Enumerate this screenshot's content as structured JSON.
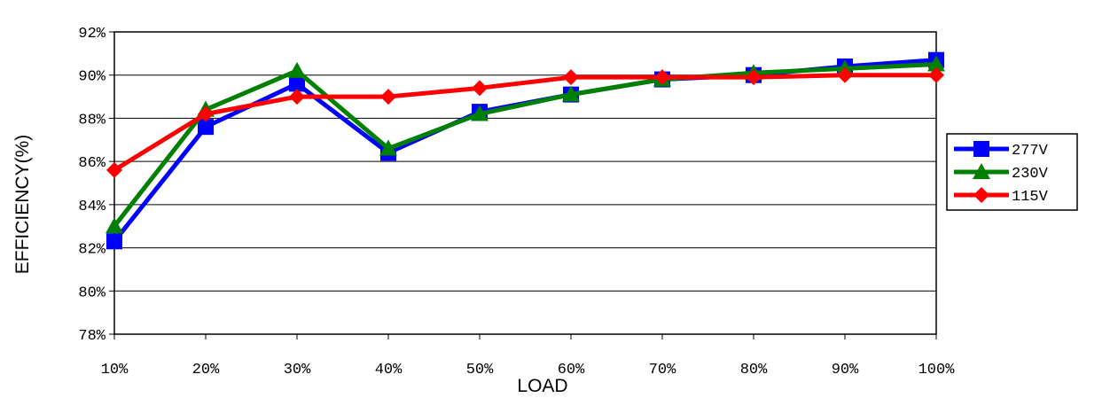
{
  "chart_data": {
    "type": "line",
    "xlabel": "LOAD",
    "ylabel": "EFFICIENCY(%)",
    "categories": [
      "10%",
      "20%",
      "30%",
      "40%",
      "50%",
      "60%",
      "70%",
      "80%",
      "90%",
      "100%"
    ],
    "y_ticks": [
      "78%",
      "80%",
      "82%",
      "84%",
      "86%",
      "88%",
      "90%",
      "92%"
    ],
    "ylim": [
      78,
      92
    ],
    "grid": true,
    "legend_position": "right",
    "series": [
      {
        "name": "277V",
        "color": "#0000ff",
        "marker": "square",
        "values": [
          82.3,
          87.6,
          89.6,
          86.4,
          88.3,
          89.1,
          89.8,
          90.0,
          90.4,
          90.7
        ]
      },
      {
        "name": "230V",
        "color": "#008000",
        "marker": "triangle",
        "values": [
          83.0,
          88.4,
          90.2,
          86.6,
          88.2,
          89.1,
          89.8,
          90.1,
          90.3,
          90.5
        ]
      },
      {
        "name": "115V",
        "color": "#ff0000",
        "marker": "diamond",
        "values": [
          85.6,
          88.2,
          89.0,
          89.0,
          89.4,
          89.9,
          89.9,
          89.9,
          90.0,
          90.0
        ]
      }
    ]
  }
}
